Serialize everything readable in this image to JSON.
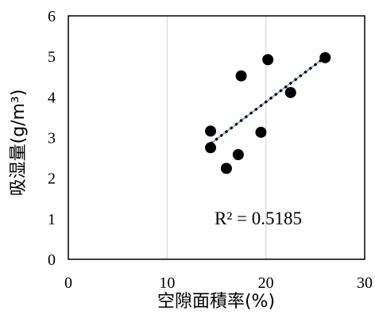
{
  "chart_data": {
    "type": "scatter",
    "xlabel": "空隙面積率(%)",
    "ylabel": "吸湿量(g/m³)",
    "xlim": [
      0,
      30
    ],
    "ylim": [
      0,
      6
    ],
    "xticks": [
      0,
      10,
      20,
      30
    ],
    "yticks": [
      0,
      1,
      2,
      3,
      4,
      5,
      6
    ],
    "grid": "vertical",
    "points": [
      {
        "x": 14.4,
        "y": 3.16
      },
      {
        "x": 14.4,
        "y": 2.75
      },
      {
        "x": 16.0,
        "y": 2.24
      },
      {
        "x": 17.2,
        "y": 2.58
      },
      {
        "x": 17.5,
        "y": 4.52
      },
      {
        "x": 19.5,
        "y": 3.13
      },
      {
        "x": 20.2,
        "y": 4.92
      },
      {
        "x": 22.5,
        "y": 4.11
      },
      {
        "x": 26.0,
        "y": 4.97
      }
    ],
    "trendline": {
      "type": "linear",
      "x_range": [
        14.4,
        26.0
      ],
      "style": "dotted",
      "y_start": 2.85,
      "y_end": 4.98
    },
    "annotation": "R² = 0.5185",
    "colors": {
      "points": "#000000",
      "trendline_dots": "#000000",
      "trendline_line": "#8faadc",
      "grid": "#d9d9d9",
      "axis": "#000000"
    }
  }
}
